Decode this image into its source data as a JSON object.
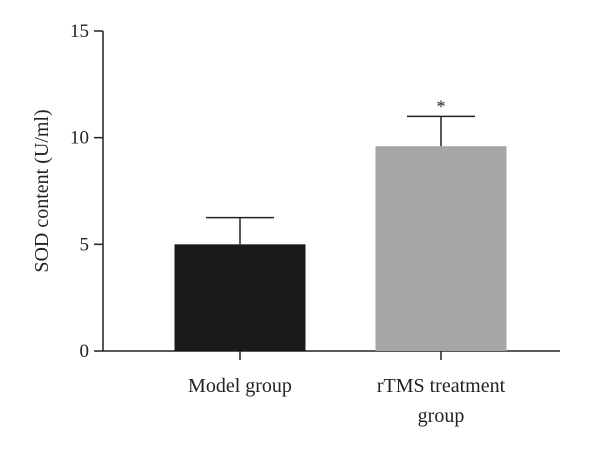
{
  "chart_data": {
    "type": "bar",
    "title": "",
    "xlabel": "",
    "ylabel": "SOD content (U/ml)",
    "ylim": [
      0,
      15
    ],
    "yticks": [
      0,
      5,
      10,
      15
    ],
    "categories": [
      {
        "lines": [
          "Model group"
        ]
      },
      {
        "lines": [
          "rTMS treatment",
          "group"
        ]
      }
    ],
    "values": [
      5.0,
      9.6
    ],
    "errors": [
      1.25,
      1.4
    ],
    "significance": [
      "",
      "*"
    ],
    "colors": [
      "#1a1a1a",
      "#a6a6a6"
    ],
    "grid": false,
    "legend": "none"
  }
}
